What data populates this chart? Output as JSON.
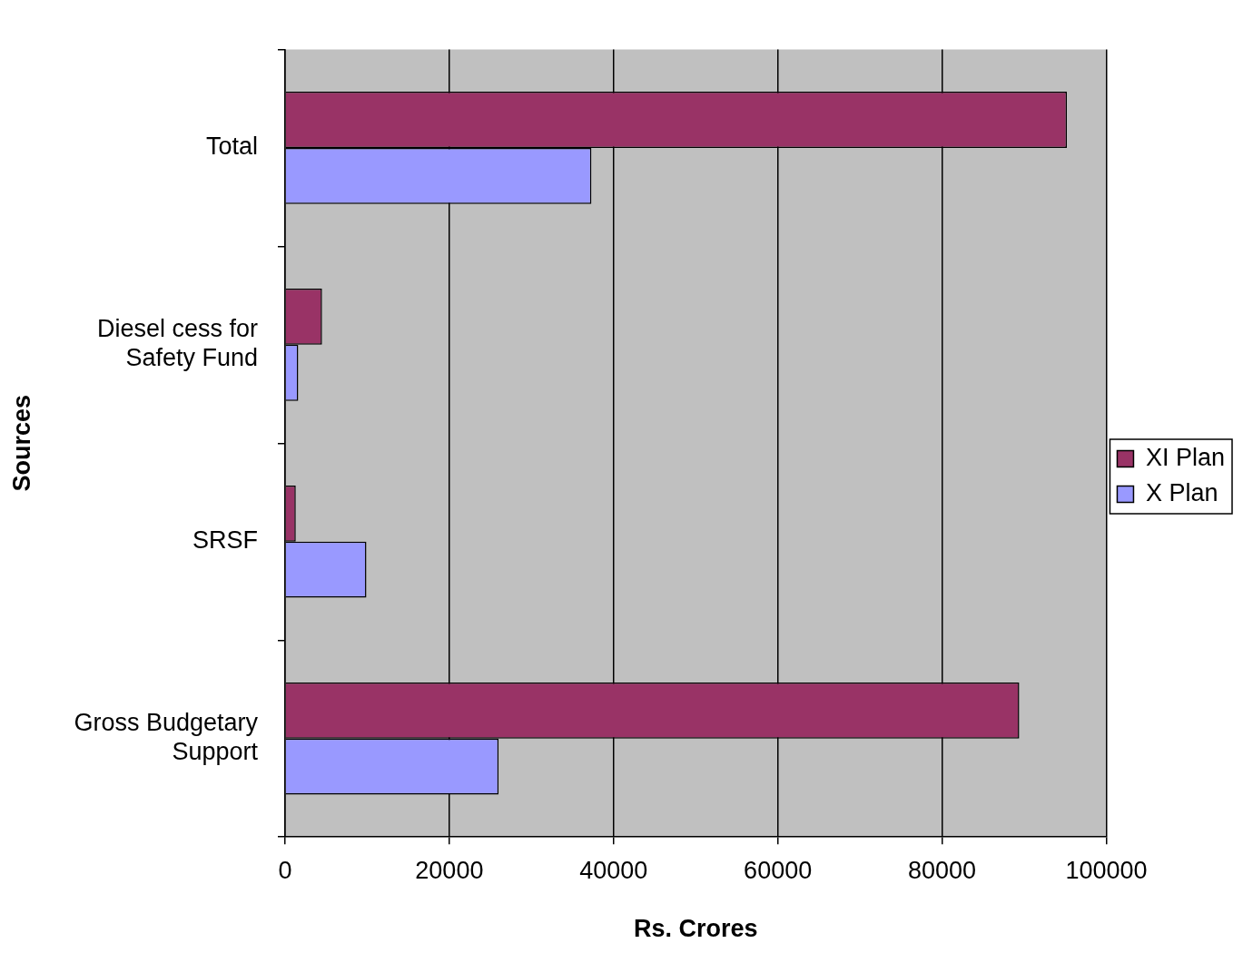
{
  "chart_data": {
    "type": "bar",
    "orientation": "horizontal",
    "xlabel": "Rs. Crores",
    "ylabel": "Sources",
    "categories": [
      "Total",
      "Diesel cess for Safety Fund",
      "SRSF",
      "Gross Budgetary Support"
    ],
    "series": [
      {
        "name": "XI Plan",
        "color": "#993366",
        "values": [
          95200,
          4500,
          1300,
          89400
        ]
      },
      {
        "name": "X Plan",
        "color": "#9999ff",
        "values": [
          37300,
          1600,
          9900,
          26000
        ]
      }
    ],
    "xlim": [
      0,
      100000
    ],
    "xticks": [
      0,
      20000,
      40000,
      60000,
      80000,
      100000
    ],
    "grid": "x",
    "legend": "right"
  }
}
